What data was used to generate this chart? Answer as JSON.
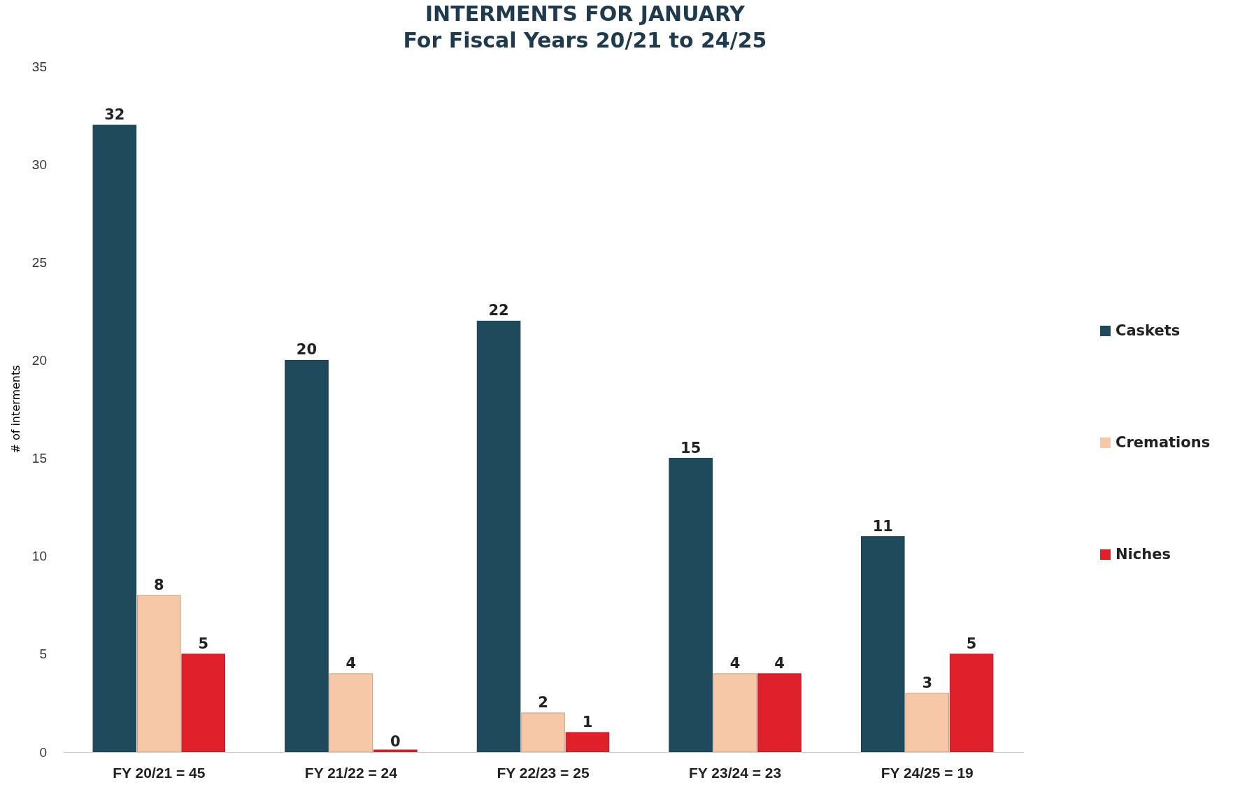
{
  "chart_data": {
    "type": "bar",
    "title": "INTERMENTS FOR JANUARY",
    "subtitle": "For Fiscal Years 20/21 to 24/25",
    "ylabel": "# of interments",
    "categories": [
      "FY 20/21 = 45",
      "FY 21/22 = 24",
      "FY 22/23 = 25",
      "FY 23/24 = 23",
      "FY 24/25 = 19"
    ],
    "series": [
      {
        "name": "Caskets",
        "color": "#1f4a5c",
        "values": [
          32,
          20,
          22,
          15,
          11
        ]
      },
      {
        "name": "Cremations",
        "color": "#f7c8a8",
        "values": [
          8,
          4,
          2,
          4,
          3
        ]
      },
      {
        "name": "Niches",
        "color": "#e0202a",
        "values": [
          5,
          0,
          1,
          4,
          5
        ]
      }
    ],
    "ylim": [
      0,
      35
    ],
    "yticks": [
      0,
      5,
      10,
      15,
      20,
      25,
      30,
      35
    ],
    "data_labels": true,
    "legend": "right"
  }
}
